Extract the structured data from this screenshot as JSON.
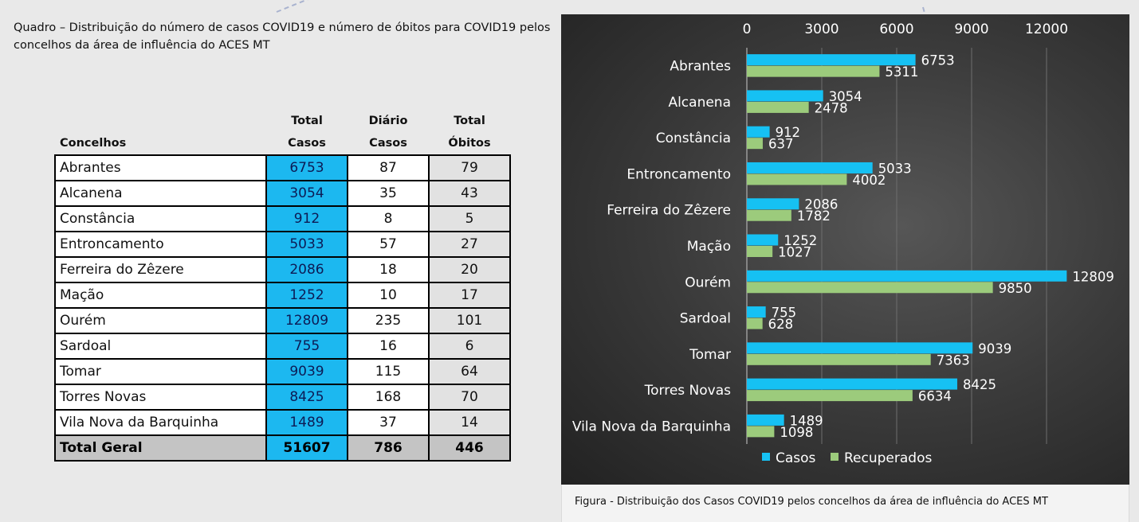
{
  "table_title": "Quadro – Distribuição do número de casos COVID19 e número de óbitos para COVID19 pelos concelhos da área de influência do ACES MT",
  "table": {
    "headers": {
      "concelhos": "Concelhos",
      "total_casos_top": "Total",
      "total_casos_bottom": "Casos",
      "diario_casos_top": "Diário",
      "diario_casos_bottom": "Casos",
      "total_obitos_top": "Total",
      "total_obitos_bottom": "Óbitos"
    },
    "rows": [
      {
        "name": "Abrantes",
        "casos": "6753",
        "diario": "87",
        "obitos": "79"
      },
      {
        "name": "Alcanena",
        "casos": "3054",
        "diario": "35",
        "obitos": "43"
      },
      {
        "name": "Constância",
        "casos": "912",
        "diario": "8",
        "obitos": "5"
      },
      {
        "name": "Entroncamento",
        "casos": "5033",
        "diario": "57",
        "obitos": "27"
      },
      {
        "name": "Ferreira do Zêzere",
        "casos": "2086",
        "diario": "18",
        "obitos": "20"
      },
      {
        "name": "Mação",
        "casos": "1252",
        "diario": "10",
        "obitos": "17"
      },
      {
        "name": "Ourém",
        "casos": "12809",
        "diario": "235",
        "obitos": "101"
      },
      {
        "name": "Sardoal",
        "casos": "755",
        "diario": "16",
        "obitos": "6"
      },
      {
        "name": "Tomar",
        "casos": "9039",
        "diario": "115",
        "obitos": "64"
      },
      {
        "name": "Torres Novas",
        "casos": "8425",
        "diario": "168",
        "obitos": "70"
      },
      {
        "name": "Vila Nova da Barquinha",
        "casos": "1489",
        "diario": "37",
        "obitos": "14"
      }
    ],
    "total": {
      "name": "Total Geral",
      "casos": "51607",
      "diario": "786",
      "obitos": "446"
    }
  },
  "chart_data": {
    "type": "bar",
    "orientation": "horizontal",
    "categories": [
      "Abrantes",
      "Alcanena",
      "Constância",
      "Entroncamento",
      "Ferreira do Zêzere",
      "Mação",
      "Ourém",
      "Sardoal",
      "Tomar",
      "Torres Novas",
      "Vila Nova da Barquinha"
    ],
    "series": [
      {
        "name": "Casos",
        "color": "#16c1f3",
        "values": [
          6753,
          3054,
          912,
          5033,
          2086,
          1252,
          12809,
          755,
          9039,
          8425,
          1489
        ]
      },
      {
        "name": "Recuperados",
        "color": "#9ccb7c",
        "values": [
          5311,
          2478,
          637,
          4002,
          1782,
          1027,
          9850,
          628,
          7363,
          6634,
          1098
        ]
      }
    ],
    "xlim": [
      0,
      12000
    ],
    "xticks": [
      0,
      3000,
      6000,
      9000,
      12000
    ],
    "x_axis_position": "top",
    "data_labels": true,
    "grid": true,
    "legend": "bottom",
    "background": "#3a3a3a"
  },
  "caption": "Figura -  Distribuição dos Casos COVID19 pelos concelhos da área de influência do ACES MT"
}
